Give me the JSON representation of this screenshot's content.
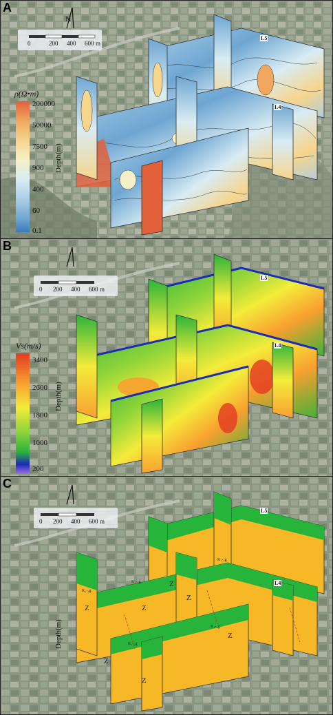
{
  "panels": [
    {
      "letter": "A"
    },
    {
      "letter": "B"
    },
    {
      "letter": "C"
    }
  ],
  "scalebar": {
    "ticks": [
      "0",
      "200",
      "400",
      "600"
    ],
    "unit": "m"
  },
  "legend_a": {
    "title_prefix": "ρ",
    "title_unit": "(Ω•m)",
    "ticks": [
      "200000",
      "50000",
      "7500",
      "900",
      "400",
      "60",
      "0.1"
    ]
  },
  "legend_b": {
    "title_prefix": "Vs",
    "title_unit": "(m/s)",
    "ticks": [
      "3400",
      "2600",
      "1800",
      "1000",
      "200"
    ]
  },
  "axis": {
    "depth_label": "Depth(m)"
  },
  "line_tags": {
    "l4": "L4",
    "l5": "L5"
  },
  "layer_labels": {
    "z": "Z",
    "k": "K₁-₂g"
  },
  "colors": {
    "resistivity_scale": [
      "#3a7ab8",
      "#6ea6d2",
      "#a9cde6",
      "#d8ecf4",
      "#f6f0c8",
      "#f6d58c",
      "#f0a860",
      "#e2603a"
    ],
    "velocity_scale": [
      "#9b6fe0",
      "#1a2bb8",
      "#2ab43a",
      "#8fd43a",
      "#f4ec3a",
      "#f8a030",
      "#e23a20"
    ],
    "interp_upper": "#27b43a",
    "interp_lower": "#f6b826"
  }
}
